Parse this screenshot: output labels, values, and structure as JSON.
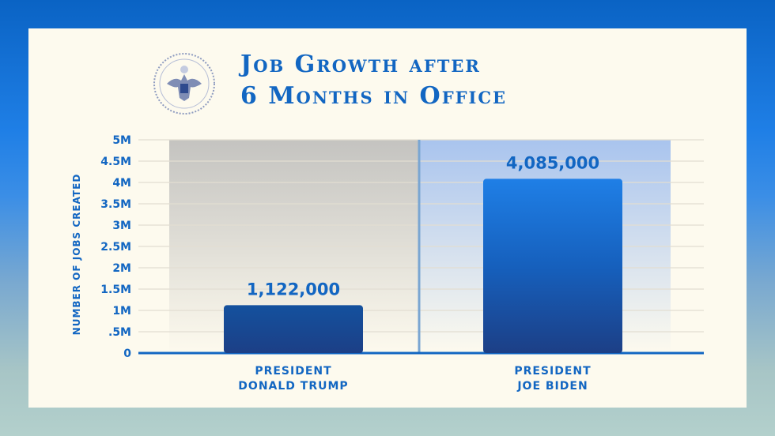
{
  "chart_data": {
    "type": "bar",
    "title": "Job Growth after 6 Months in Office",
    "ylabel": "NUMBER OF JOBS CREATED",
    "categories": [
      [
        "PRESIDENT",
        "DONALD TRUMP"
      ],
      [
        "PRESIDENT",
        "JOE BIDEN"
      ]
    ],
    "values": [
      1122000,
      4085000
    ],
    "data_labels": [
      "1,122,000",
      "4,085,000"
    ],
    "ylim": [
      0,
      5000000
    ],
    "yticks": [
      0,
      500000,
      1000000,
      1500000,
      2000000,
      2500000,
      3000000,
      3500000,
      4000000,
      4500000,
      5000000
    ],
    "ytick_labels": [
      "0",
      ".5M",
      "1M",
      "1.5M",
      "2M",
      "2.5M",
      "3M",
      "3.5M",
      "4M",
      "4.5M",
      "5M"
    ],
    "grid": true,
    "colors": {
      "bar": "#1a4f9e",
      "text": "#1266c2",
      "panel_left": "#c4c3c0",
      "panel_right": "#a9c4ee"
    }
  },
  "title_lines": [
    "Job Growth after",
    "6 Months in Office"
  ],
  "seal": {
    "name": "presidential-seal"
  }
}
